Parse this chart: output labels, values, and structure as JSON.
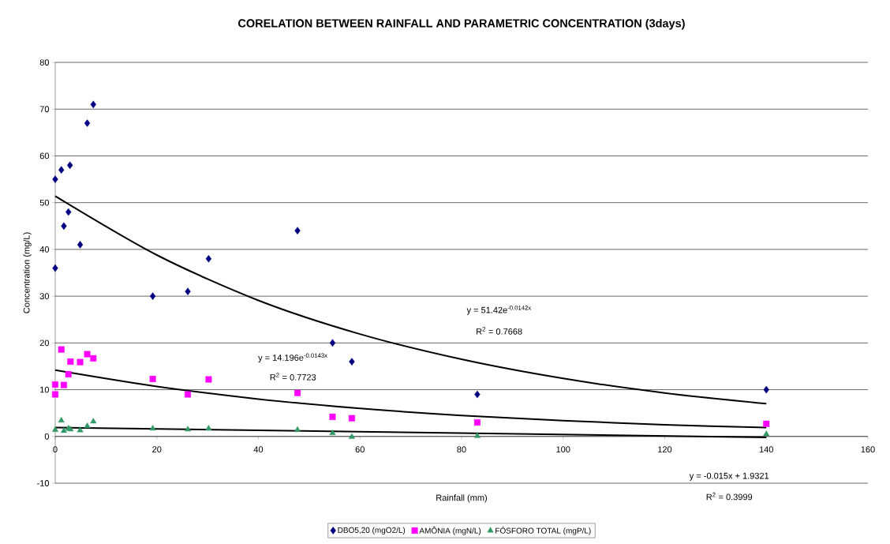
{
  "chart_data": {
    "type": "scatter",
    "title": "CORELATION BETWEEN RAINFALL AND PARAMETRIC CONCENTRATION (3days)",
    "xlabel": "Rainfall (mm)",
    "ylabel": "Concentration (mg/L)",
    "xlim": [
      0,
      160
    ],
    "xticks": [
      0,
      20,
      40,
      60,
      80,
      100,
      120,
      140,
      160
    ],
    "ylim": [
      -10,
      80
    ],
    "yticks": [
      -10,
      0,
      10,
      20,
      30,
      40,
      50,
      60,
      70,
      80
    ],
    "grid": "y",
    "legend": "bottom",
    "series": [
      {
        "name": "DBO5,20  (mgO2/L)",
        "type": "scatter",
        "marker": "diamond",
        "color": "#000080",
        "x": [
          0,
          0,
          1.2,
          1.7,
          2.6,
          2.9,
          4.9,
          6.3,
          7.5,
          19.2,
          26.1,
          30.2,
          47.7,
          54.6,
          58.4,
          83.1,
          140
        ],
        "values": [
          55,
          36,
          57,
          45,
          48,
          58,
          41,
          67,
          71,
          30,
          31,
          38,
          44,
          20,
          16,
          9,
          10
        ]
      },
      {
        "name": "AMÔNIA  (mgN/L)",
        "type": "scatter",
        "marker": "square",
        "color": "#ff00ff",
        "x": [
          0,
          0,
          1.2,
          1.7,
          2.6,
          3.0,
          4.9,
          6.3,
          7.5,
          19.2,
          26.1,
          30.2,
          47.7,
          54.6,
          58.4,
          83.1,
          140
        ],
        "values": [
          11.1,
          9.0,
          18.6,
          11.0,
          13.3,
          16.0,
          15.9,
          17.6,
          16.7,
          12.3,
          9.0,
          12.2,
          9.3,
          4.2,
          3.9,
          3.0,
          2.7
        ]
      },
      {
        "name": "FÓSFORO TOTAL  (mgP/L)",
        "type": "scatter",
        "marker": "triangle",
        "color": "#339966",
        "x": [
          0,
          1.2,
          1.7,
          2.6,
          3.0,
          4.9,
          6.3,
          7.5,
          19.2,
          26.1,
          30.2,
          47.7,
          54.6,
          58.4,
          83.1,
          140
        ],
        "values": [
          1.4,
          3.4,
          1.2,
          1.7,
          1.5,
          1.3,
          2.2,
          3.2,
          1.7,
          1.5,
          1.7,
          1.4,
          0.7,
          -0.1,
          0.1,
          0.5
        ]
      },
      {
        "type": "line",
        "marker": "none",
        "color": "#000000",
        "x": [
          0,
          20,
          40,
          60,
          80,
          100,
          120,
          140
        ],
        "values": [
          51.4,
          38.8,
          29.1,
          21.9,
          16.5,
          12.4,
          9.3,
          7.0
        ]
      },
      {
        "type": "line",
        "marker": "none",
        "color": "#000000",
        "x": [
          0,
          20,
          40,
          60,
          80,
          100,
          120,
          140
        ],
        "values": [
          14.2,
          10.7,
          8.0,
          6.0,
          4.5,
          3.4,
          2.5,
          1.9
        ]
      },
      {
        "type": "line",
        "marker": "none",
        "color": "#000000",
        "x": [
          0,
          140
        ],
        "values": [
          1.9,
          -0.2
        ]
      }
    ],
    "annotations": [
      "y = 51.42e$^{-0.0142x}$",
      "R$^{2}$ = 0.7668",
      "y = 14.196e$^{-0.0143x}$",
      "R$^{2}$ = 0.7723",
      "y = -0.015x + 1.9321",
      "R$^{2}$ = 0.3999"
    ]
  }
}
